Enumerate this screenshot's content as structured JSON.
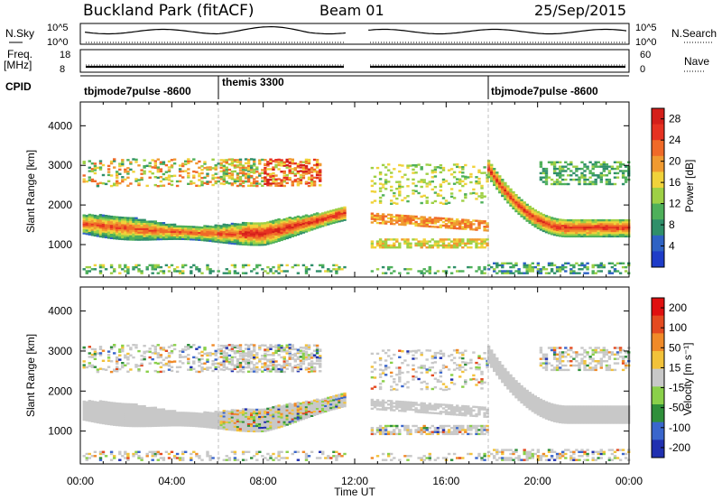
{
  "header": {
    "site": "Buckland Park (fitACF)",
    "beam": "Beam 01",
    "date": "25/Sep/2015"
  },
  "top_panels": {
    "nsky_label": "N.Sky",
    "nsky_ticks": [
      "10^5",
      "10^0"
    ],
    "nsearch_label": "N.Search",
    "nsearch_ticks": [
      "10^5",
      "10^0"
    ],
    "freq_label": "Freq.",
    "freq_unit": "[MHz]",
    "freq_ticks": [
      "18",
      "8"
    ],
    "nave_label": "Nave",
    "nave_ticks": [
      "60",
      "0"
    ],
    "cpid_label": "CPID",
    "cpid_segments": [
      {
        "label": "tbjmode7pulse -8600",
        "start_hour": 0,
        "end_hour": 6
      },
      {
        "label": "themis 3300",
        "start_hour": 6,
        "end_hour": 18
      },
      {
        "label": "tbjmode7pulse -8600",
        "start_hour": 18,
        "end_hour": 24
      }
    ]
  },
  "chart_data": [
    {
      "type": "heatmap",
      "title": "",
      "xlabel": "Time UT",
      "ylabel": "Slant Range [km]",
      "xlim": [
        0,
        24
      ],
      "ylim": [
        180,
        4600
      ],
      "x_ticks": [
        "00:00",
        "04:00",
        "08:00",
        "12:00",
        "16:00",
        "20:00",
        "00:00"
      ],
      "y_ticks": [
        1000,
        2000,
        3000,
        4000
      ],
      "data_gap_hours": [
        11.7,
        12.6
      ],
      "colorbar": {
        "label": "Power [dB]",
        "ticks": [
          4,
          8,
          12,
          16,
          20,
          24,
          28
        ],
        "range": [
          0,
          30
        ],
        "colors": [
          "#1e3cc8",
          "#2e62c4",
          "#2f8f6a",
          "#4eb05a",
          "#9ed045",
          "#f0d23a",
          "#f09a30",
          "#f06a28",
          "#e63222",
          "#d41f1a"
        ]
      },
      "echo_bands": [
        {
          "name": "main",
          "start_hour": 0,
          "end_hour": 11.5,
          "range_start_km": 1450,
          "range_end_km": 1550,
          "power_db": 22
        },
        {
          "name": "morning-return",
          "start_hour": 16.8,
          "end_hour": 24,
          "range_start_km": 3000,
          "range_end_km": 1400,
          "power_db": 24
        },
        {
          "name": "afternoon",
          "start_hour": 12.7,
          "end_hour": 17.8,
          "range_start_km": 1700,
          "range_end_km": 1450,
          "power_db": 18
        }
      ]
    },
    {
      "type": "heatmap",
      "title": "",
      "xlabel": "Time UT",
      "ylabel": "Slant Range [km]",
      "xlim": [
        0,
        24
      ],
      "ylim": [
        180,
        4600
      ],
      "x_ticks": [
        "00:00",
        "04:00",
        "08:00",
        "12:00",
        "16:00",
        "20:00",
        "00:00"
      ],
      "y_ticks": [
        1000,
        2000,
        3000,
        4000
      ],
      "colorbar": {
        "label": "Velocity [m s⁻¹]",
        "ticks": [
          200,
          100,
          50,
          15,
          -15,
          -50,
          -100,
          -200
        ],
        "colors": [
          "#2030b0",
          "#3a66cc",
          "#2f8f3a",
          "#8ad04a",
          "#c8c8c8",
          "#f2c23a",
          "#f08a28",
          "#e44a20",
          "#e01010"
        ]
      }
    }
  ]
}
